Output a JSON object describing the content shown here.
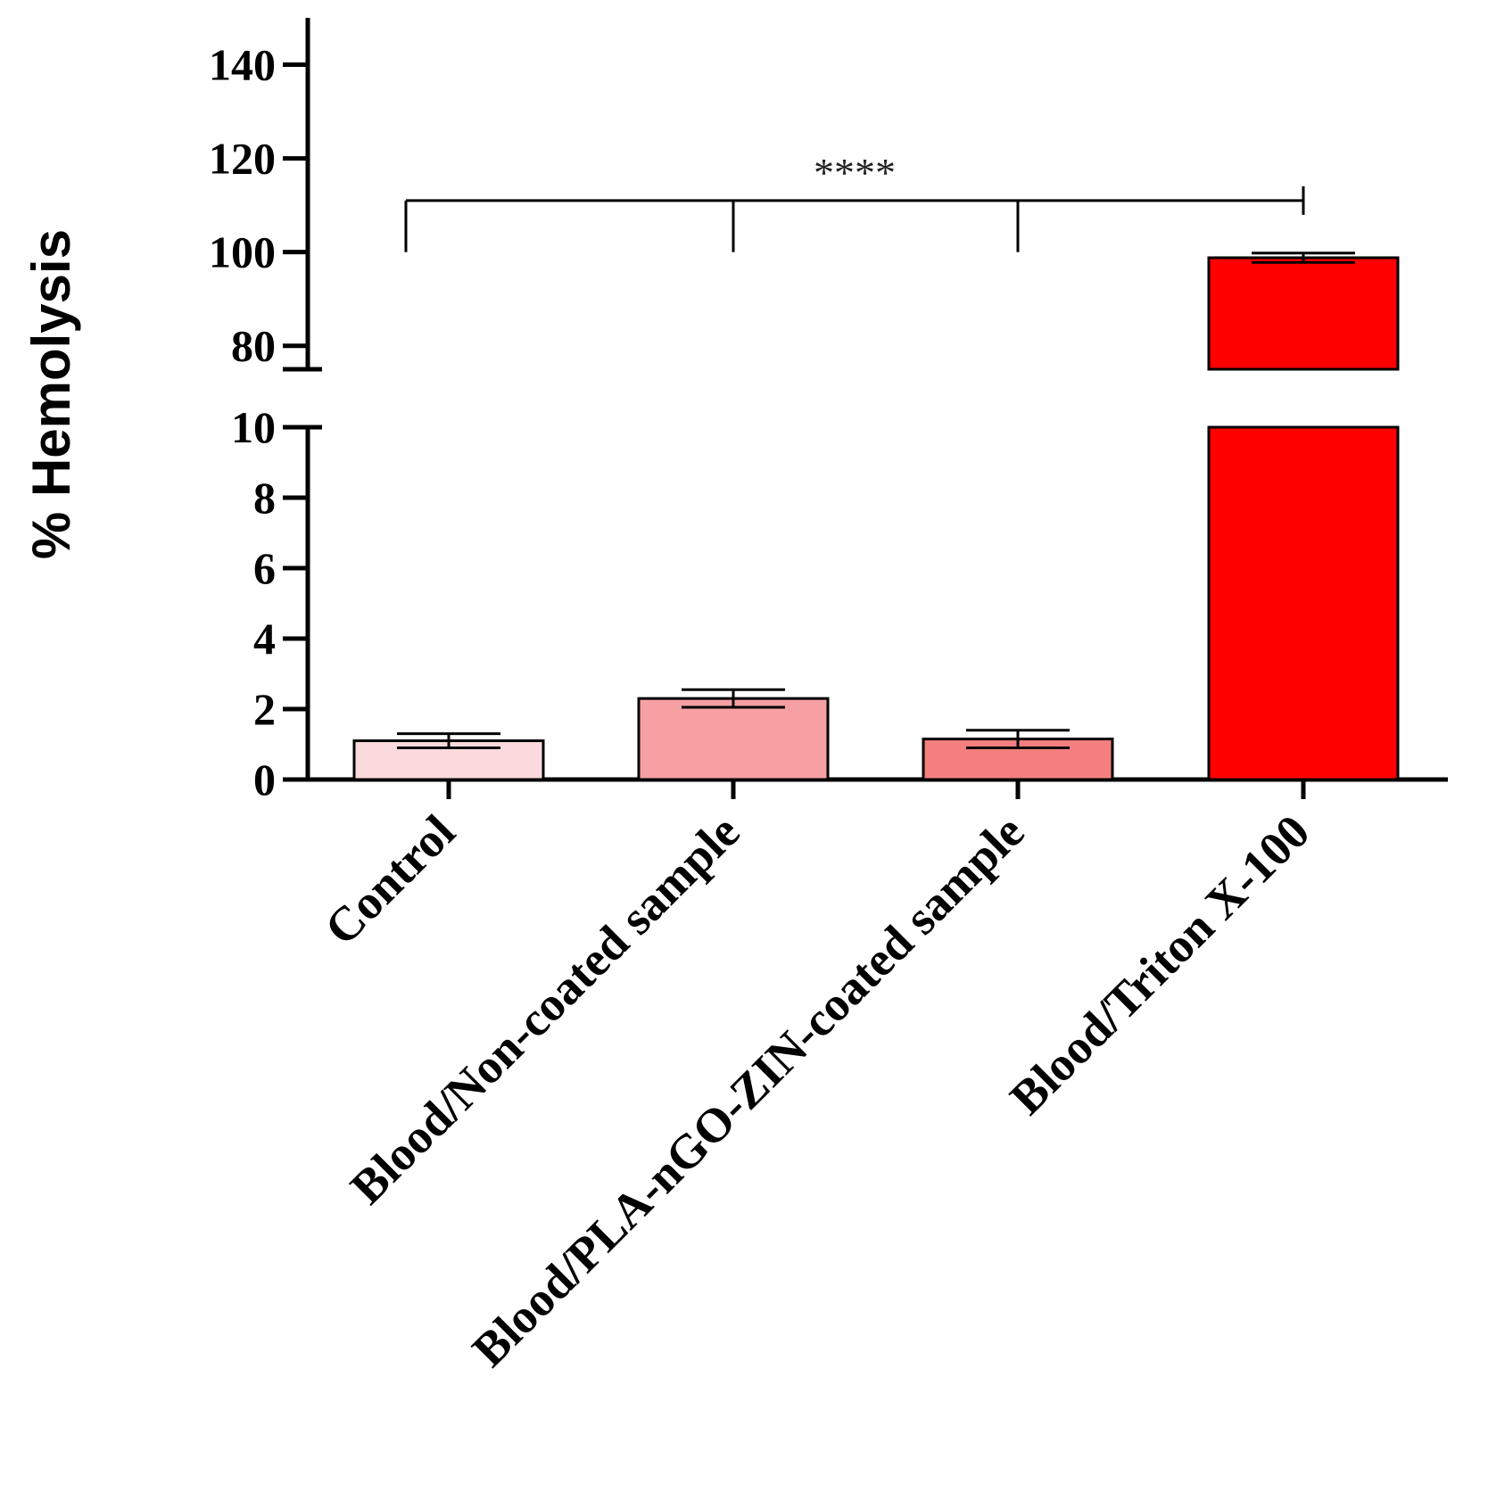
{
  "chart_data": {
    "type": "bar",
    "ylabel": "% Hemolysis",
    "categories": [
      "Control",
      "Blood/Non-coated sample",
      "Blood/PLA-nGO-ZIN-coated sample",
      "Blood/Triton X-100"
    ],
    "values": [
      1.1,
      2.3,
      1.15,
      98.8
    ],
    "errors": [
      0.2,
      0.25,
      0.25,
      1.0
    ],
    "colors": [
      "#fadadc",
      "#f7a0a3",
      "#f57f80",
      "#ff0000"
    ],
    "axis_break": true,
    "ylim_lower": [
      0,
      10
    ],
    "ylim_upper": [
      75,
      150
    ],
    "yticks_lower": [
      0,
      2,
      4,
      6,
      8,
      10
    ],
    "yticks_upper": [
      80,
      100,
      120,
      140
    ],
    "significance": {
      "label": "****",
      "reference_category": "Blood/Triton X-100",
      "compared_categories": [
        "Control",
        "Blood/Non-coated sample",
        "Blood/PLA-nGO-ZIN-coated sample"
      ],
      "level": 111
    },
    "grid": false,
    "legend": "none"
  }
}
